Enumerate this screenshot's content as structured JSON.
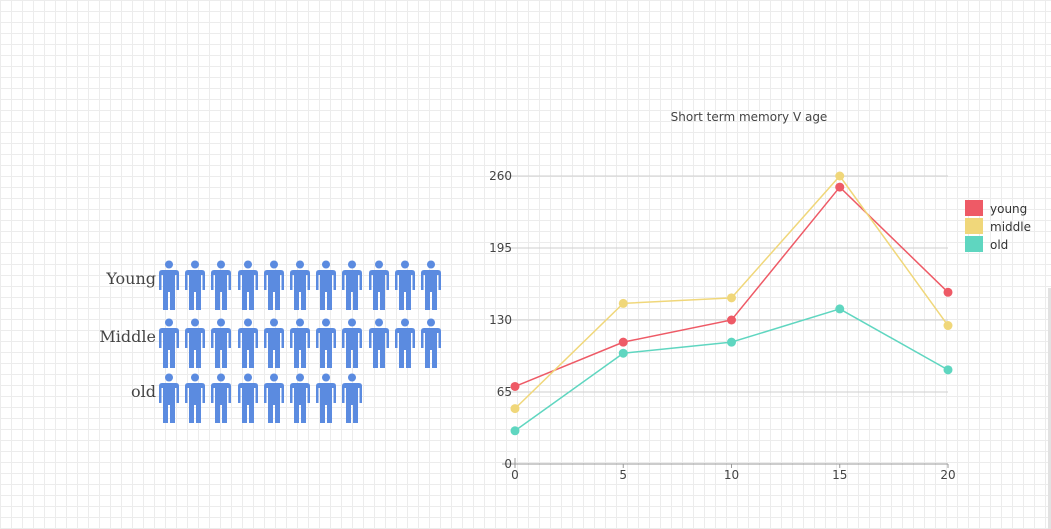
{
  "pictogram": {
    "color": "#5b8be0",
    "rows": [
      {
        "label": "Young",
        "count": 11
      },
      {
        "label": "Middle",
        "count": 11
      },
      {
        "label": "old",
        "count": 8
      }
    ],
    "icon": "person-icon"
  },
  "chart_data": {
    "type": "line",
    "title": "Short term memory V age",
    "x": [
      0,
      5,
      10,
      15,
      20
    ],
    "xticks": [
      "0",
      "5",
      "10",
      "15",
      "20"
    ],
    "yticks": [
      "0",
      "65",
      "130",
      "195",
      "260"
    ],
    "ylim": [
      0,
      260
    ],
    "grid": true,
    "legend_position": "right",
    "series": [
      {
        "name": "young",
        "color": "#ee5a66",
        "values": [
          70,
          110,
          130,
          250,
          155
        ]
      },
      {
        "name": "middle",
        "color": "#f0d77a",
        "values": [
          50,
          145,
          150,
          260,
          125
        ]
      },
      {
        "name": "old",
        "color": "#5fd6c0",
        "values": [
          30,
          100,
          110,
          140,
          85
        ]
      }
    ]
  }
}
